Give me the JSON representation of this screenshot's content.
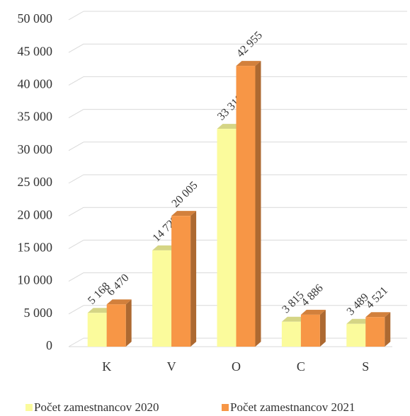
{
  "chart_data": {
    "type": "bar3d",
    "categories": [
      "K",
      "V",
      "O",
      "C",
      "S"
    ],
    "series": [
      {
        "name": "Počet zamestnancov 2020",
        "color": "#fbfb9c",
        "values": [
          5168,
          14729,
          33318,
          3815,
          3489
        ],
        "value_labels": [
          "5 168",
          "14 729",
          "33 318",
          "3 815",
          "3 489"
        ]
      },
      {
        "name": "Počet zamestnancov 2021",
        "color": "#f79646",
        "values": [
          6470,
          20005,
          42955,
          4886,
          4521
        ],
        "value_labels": [
          "6 470",
          "20 005",
          "42 955",
          "4 886",
          "4 521"
        ]
      }
    ],
    "ylim": [
      0,
      50000
    ],
    "yticks": [
      0,
      {
        "value": 5000,
        "label": "5 000"
      },
      {
        "value": 10000,
        "label": "10 000"
      },
      {
        "value": 15000,
        "label": "15 000"
      },
      {
        "value": 20000,
        "label": "20 000"
      },
      {
        "value": 25000,
        "label": "25 000"
      },
      {
        "value": 30000,
        "label": "30 000"
      },
      {
        "value": 35000,
        "label": "35 000"
      },
      {
        "value": 40000,
        "label": "40 000"
      },
      {
        "value": 45000,
        "label": "45 000"
      },
      {
        "value": 50000,
        "label": "50 000"
      }
    ],
    "grid": true,
    "legend": "bottom"
  }
}
